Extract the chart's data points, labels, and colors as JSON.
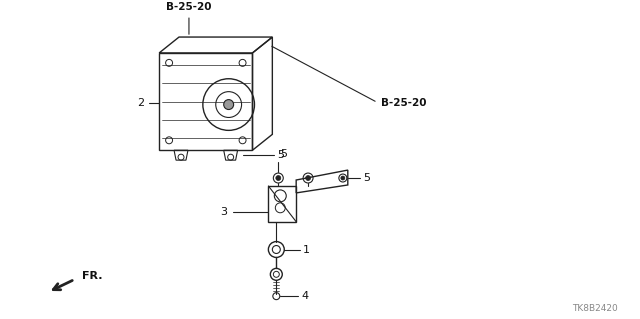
{
  "bg_color": "#ffffff",
  "line_color": "#222222",
  "text_color": "#111111",
  "gray_color": "#888888",
  "labels": {
    "b25_20_top": "B-25-20",
    "b25_20_right": "B-25-20",
    "label_1": "1",
    "label_2": "2",
    "label_3": "3",
    "label_4": "4",
    "label_5a": "5",
    "label_5b": "5",
    "label_5c": "5",
    "fr_label": "FR.",
    "part_num": "TK8B2420"
  }
}
